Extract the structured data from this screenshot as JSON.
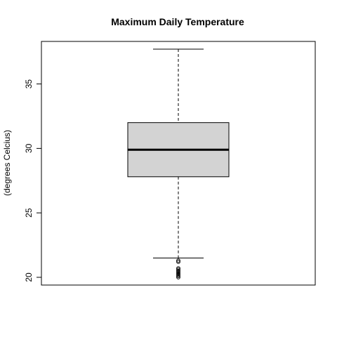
{
  "chart_data": {
    "type": "boxplot",
    "title": "Maximum Daily Temperature",
    "xlabel": "",
    "ylabel": "(degrees Celcius)",
    "ylim": [
      19.4,
      38.3
    ],
    "yticks": [
      20,
      25,
      30,
      35
    ],
    "ytick_labels": [
      "20",
      "25",
      "30",
      "35"
    ],
    "grid": false,
    "box": {
      "whisker_low": 21.5,
      "q1": 27.8,
      "median": 29.9,
      "q3": 32.0,
      "whisker_high": 37.7,
      "outliers": [
        21.3,
        21.2,
        20.7,
        20.6,
        20.5,
        20.4,
        20.3,
        20.2,
        20.1,
        20.0
      ]
    },
    "colors": {
      "box_fill": "#d3d3d3",
      "line": "#000000"
    }
  }
}
